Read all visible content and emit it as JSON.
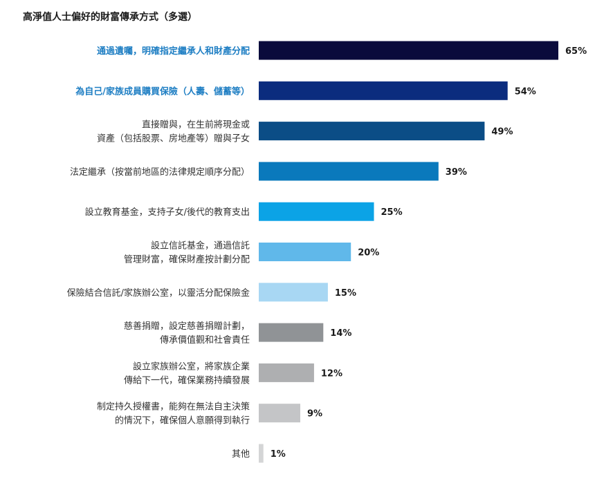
{
  "chart_data": {
    "type": "bar",
    "orientation": "horizontal",
    "title": "高淨值人士偏好的財富傳承方式（多選）",
    "value_suffix": "%",
    "xlim": [
      0,
      65
    ],
    "categories": [
      [
        "通過遺囑，明確指定繼承人和財產分配"
      ],
      [
        "為自己/家族成員購買保險（人壽、儲蓄等）"
      ],
      [
        "直接贈與，在生前將現金或",
        "資產（包括股票、房地產等）贈與子女"
      ],
      [
        "法定繼承（按當前地區的法律規定順序分配）"
      ],
      [
        "設立教育基金，支持子女/後代的教育支出"
      ],
      [
        "設立信託基金，通過信託",
        "管理財富，確保財產按計劃分配"
      ],
      [
        "保險結合信託/家族辦公室，以靈活分配保險金"
      ],
      [
        "慈善捐贈，設定慈善捐贈計劃，",
        "傳承價值觀和社會責任"
      ],
      [
        "設立家族辦公室，將家族企業",
        "傳給下一代，確保業務持續發展"
      ],
      [
        "制定持久授權書，能夠在無法自主決策",
        "的情況下，確保個人意願得到執行"
      ],
      [
        "其他"
      ]
    ],
    "values": [
      65,
      54,
      49,
      39,
      25,
      20,
      15,
      14,
      12,
      9,
      1
    ],
    "bar_colors": [
      "#0a0b3c",
      "#0b2c7e",
      "#0b4d86",
      "#0a79bc",
      "#0ba3e6",
      "#60b8ea",
      "#a8d7f3",
      "#909396",
      "#aeafb1",
      "#c4c5c7",
      "#d4d5d6"
    ],
    "label_colors": [
      "#1e7ec3",
      "#1e7ec3",
      "#333333",
      "#333333",
      "#333333",
      "#333333",
      "#333333",
      "#333333",
      "#333333",
      "#333333",
      "#333333"
    ],
    "label_bold": [
      true,
      true,
      false,
      false,
      false,
      false,
      false,
      false,
      false,
      false,
      false
    ]
  }
}
